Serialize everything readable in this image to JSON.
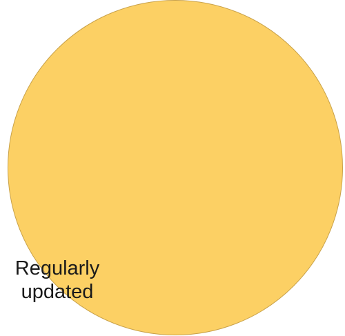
{
  "circle": {
    "fill": "#fcd064",
    "stroke": "#c9a24a"
  },
  "label": {
    "line1": "Regularly",
    "line2": "updated"
  }
}
